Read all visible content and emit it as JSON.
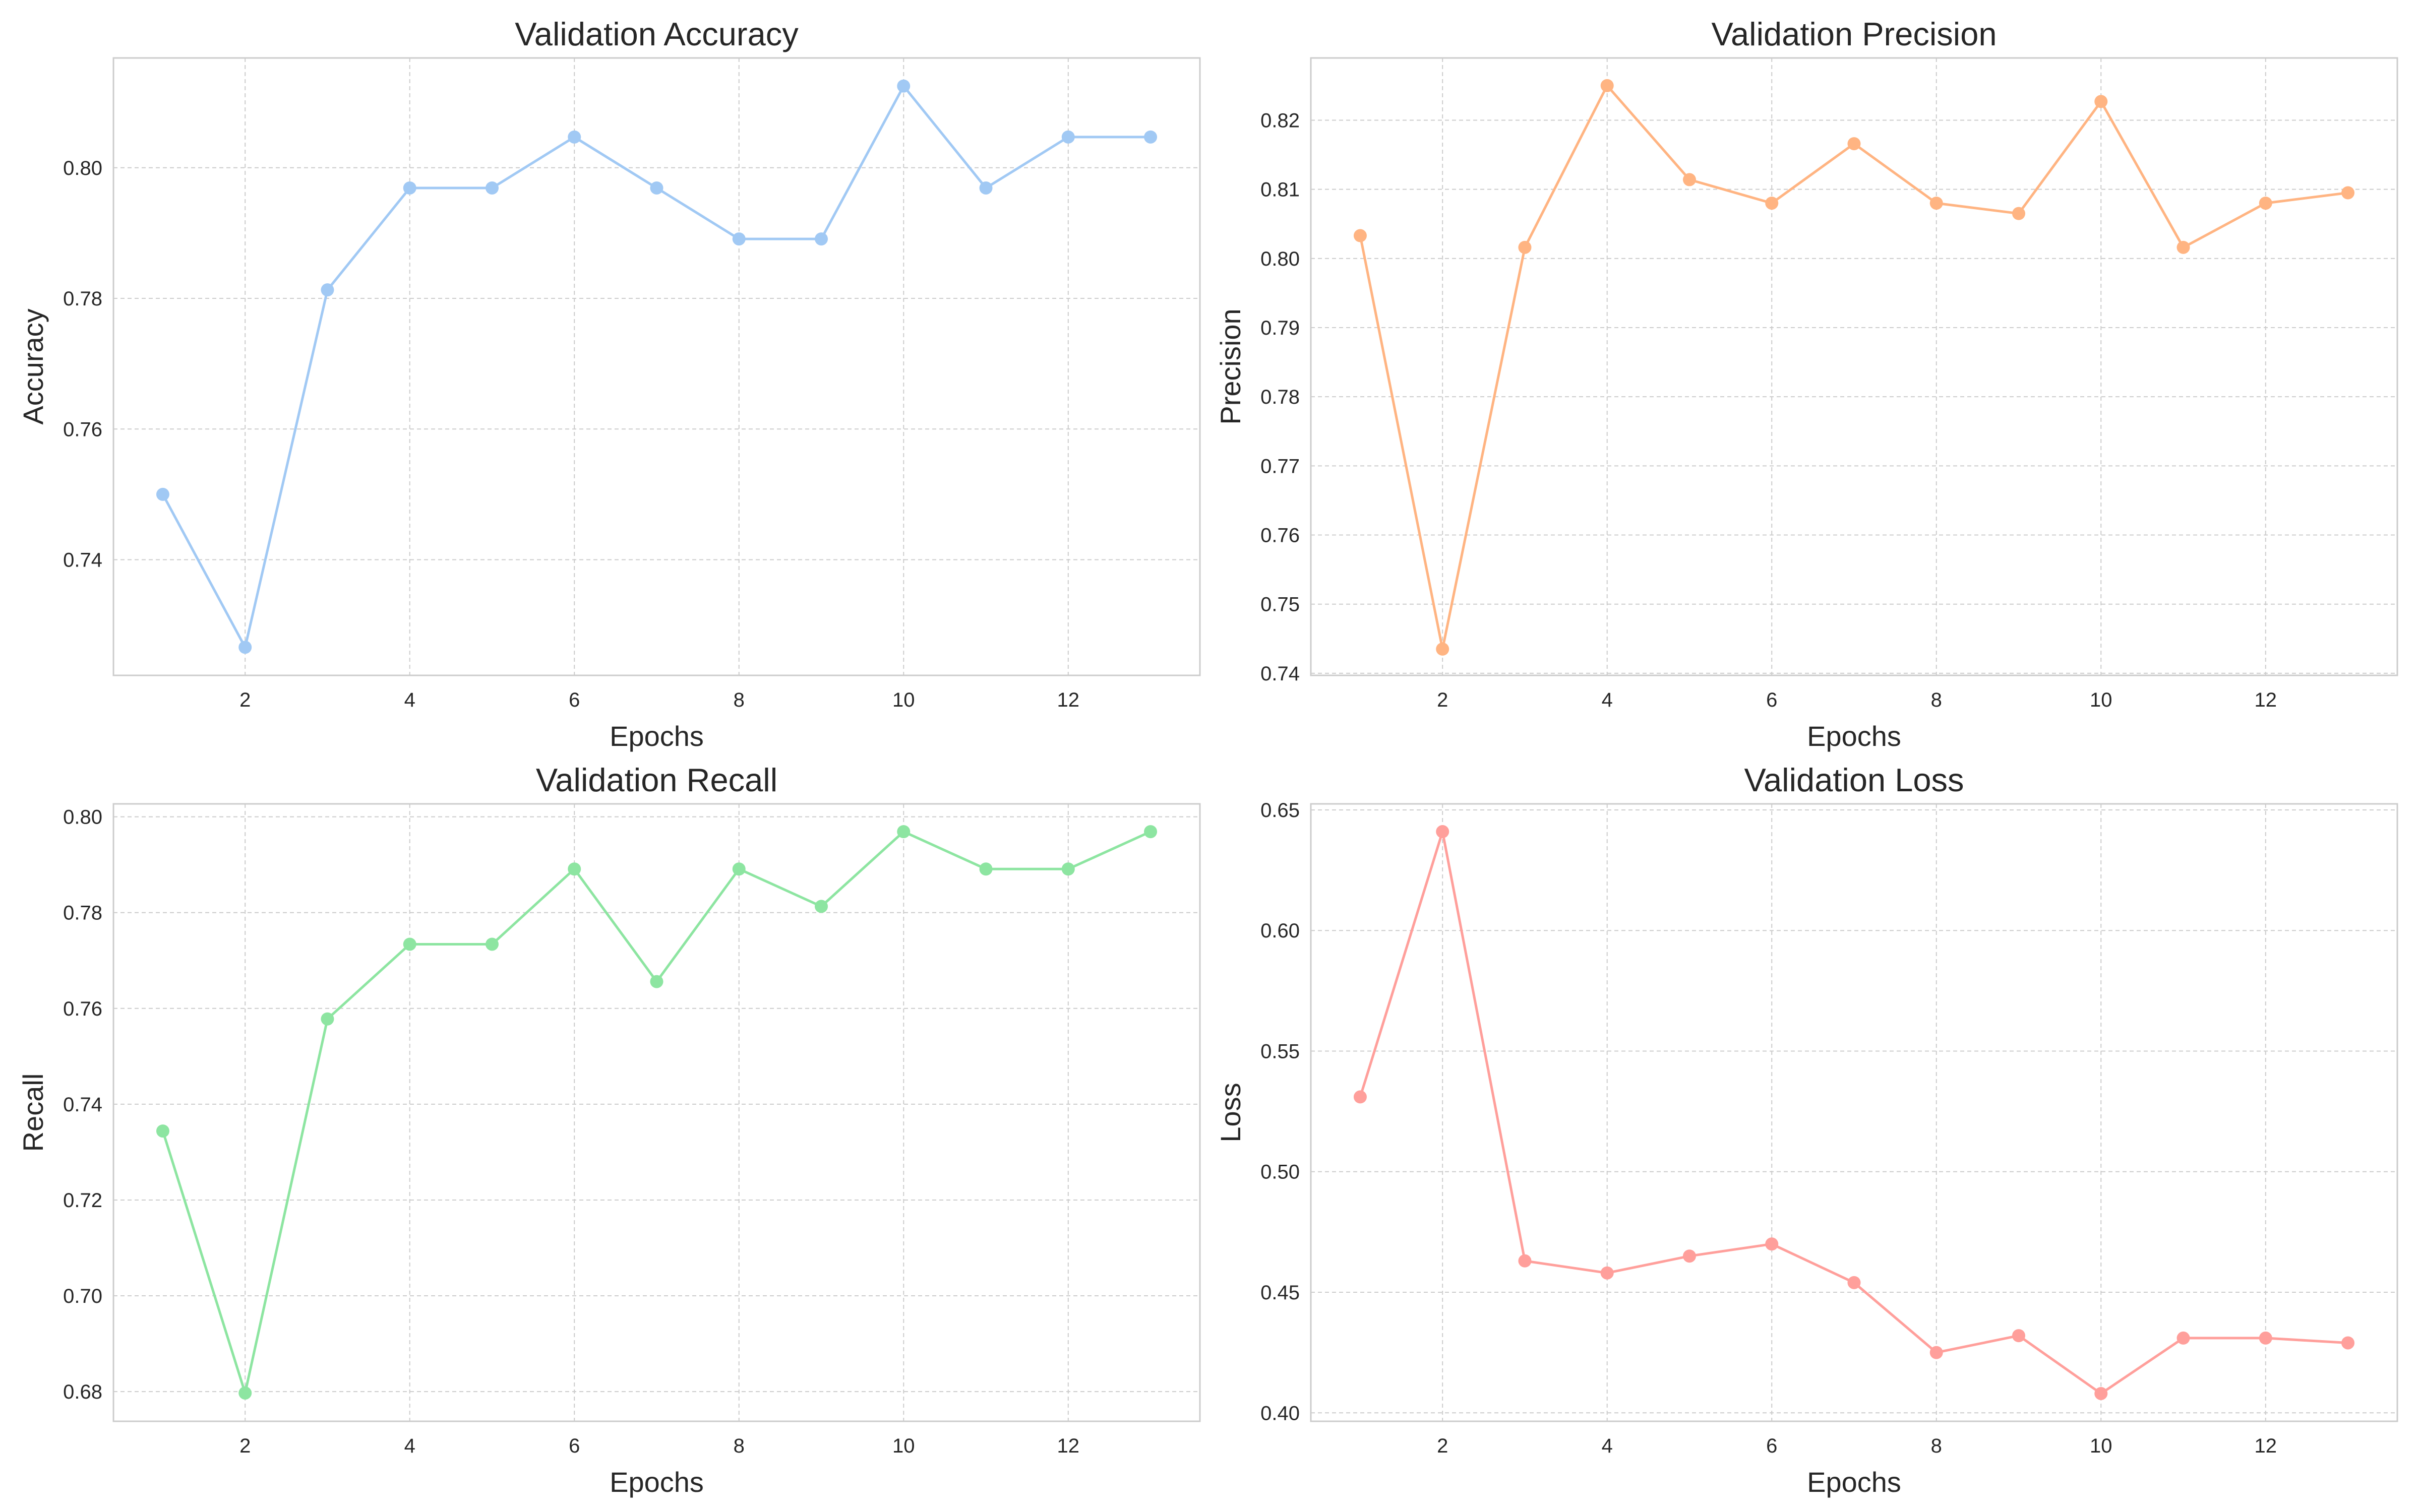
{
  "chart_data": [
    {
      "type": "line",
      "title": "Validation Accuracy",
      "xlabel": "Epochs",
      "ylabel": "Accuracy",
      "color": "#a1c9f4",
      "x": [
        1,
        2,
        3,
        4,
        5,
        6,
        7,
        8,
        9,
        10,
        11,
        12,
        13
      ],
      "values": [
        0.75,
        0.7266,
        0.7813,
        0.7969,
        0.7969,
        0.8047,
        0.7969,
        0.7891,
        0.7891,
        0.8125,
        0.7969,
        0.8047,
        0.8047
      ],
      "xlim": [
        0.4,
        13.6
      ],
      "ylim": [
        0.7223,
        0.8168
      ],
      "xticks": [
        2,
        4,
        6,
        8,
        10,
        12
      ],
      "yticks": [
        0.74,
        0.76,
        0.78,
        0.8
      ],
      "tick_labels_x": [
        "2",
        "4",
        "6",
        "8",
        "10",
        "12"
      ],
      "tick_labels_y": [
        "0.74",
        "0.76",
        "0.78",
        "0.80"
      ],
      "grid": true,
      "marker": "circle"
    },
    {
      "type": "line",
      "title": "Validation Precision",
      "xlabel": "Epochs",
      "ylabel": "Precision",
      "color": "#ffb482",
      "x": [
        1,
        2,
        3,
        4,
        5,
        6,
        7,
        8,
        9,
        10,
        11,
        12,
        13
      ],
      "values": [
        0.8033,
        0.7435,
        0.8016,
        0.825,
        0.8114,
        0.808,
        0.8166,
        0.808,
        0.8065,
        0.8227,
        0.8016,
        0.808,
        0.8095
      ],
      "xlim": [
        0.4,
        13.6
      ],
      "ylim": [
        0.7397,
        0.829
      ],
      "xticks": [
        2,
        4,
        6,
        8,
        10,
        12
      ],
      "yticks": [
        0.74,
        0.75,
        0.76,
        0.77,
        0.78,
        0.79,
        0.8,
        0.81,
        0.82
      ],
      "tick_labels_x": [
        "2",
        "4",
        "6",
        "8",
        "10",
        "12"
      ],
      "tick_labels_y": [
        "0.74",
        "0.75",
        "0.76",
        "0.77",
        "0.78",
        "0.79",
        "0.80",
        "0.81",
        "0.82"
      ],
      "grid": true,
      "marker": "circle"
    },
    {
      "type": "line",
      "title": "Validation Recall",
      "xlabel": "Epochs",
      "ylabel": "Recall",
      "color": "#8de5a1",
      "x": [
        1,
        2,
        3,
        4,
        5,
        6,
        7,
        8,
        9,
        10,
        11,
        12,
        13
      ],
      "values": [
        0.7344,
        0.6797,
        0.7578,
        0.7734,
        0.7734,
        0.7891,
        0.7656,
        0.7891,
        0.7813,
        0.7969,
        0.7891,
        0.7891,
        0.7969
      ],
      "xlim": [
        0.4,
        13.6
      ],
      "ylim": [
        0.6738,
        0.8027
      ],
      "xticks": [
        2,
        4,
        6,
        8,
        10,
        12
      ],
      "yticks": [
        0.68,
        0.7,
        0.72,
        0.74,
        0.76,
        0.78,
        0.8
      ],
      "tick_labels_x": [
        "2",
        "4",
        "6",
        "8",
        "10",
        "12"
      ],
      "tick_labels_y": [
        "0.68",
        "0.70",
        "0.72",
        "0.74",
        "0.76",
        "0.78",
        "0.80"
      ],
      "grid": true,
      "marker": "circle"
    },
    {
      "type": "line",
      "title": "Validation Loss",
      "xlabel": "Epochs",
      "ylabel": "Loss",
      "color": "#ff9f9b",
      "x": [
        1,
        2,
        3,
        4,
        5,
        6,
        7,
        8,
        9,
        10,
        11,
        12,
        13
      ],
      "values": [
        0.531,
        0.641,
        0.463,
        0.458,
        0.465,
        0.47,
        0.454,
        0.425,
        0.432,
        0.408,
        0.431,
        0.431,
        0.429
      ],
      "xlim": [
        0.4,
        13.6
      ],
      "ylim": [
        0.3965,
        0.6525
      ],
      "xticks": [
        2,
        4,
        6,
        8,
        10,
        12
      ],
      "yticks": [
        0.4,
        0.45,
        0.5,
        0.55,
        0.6,
        0.65
      ],
      "tick_labels_x": [
        "2",
        "4",
        "6",
        "8",
        "10",
        "12"
      ],
      "tick_labels_y": [
        "0.40",
        "0.45",
        "0.50",
        "0.55",
        "0.60",
        "0.65"
      ],
      "grid": true,
      "marker": "circle"
    }
  ]
}
